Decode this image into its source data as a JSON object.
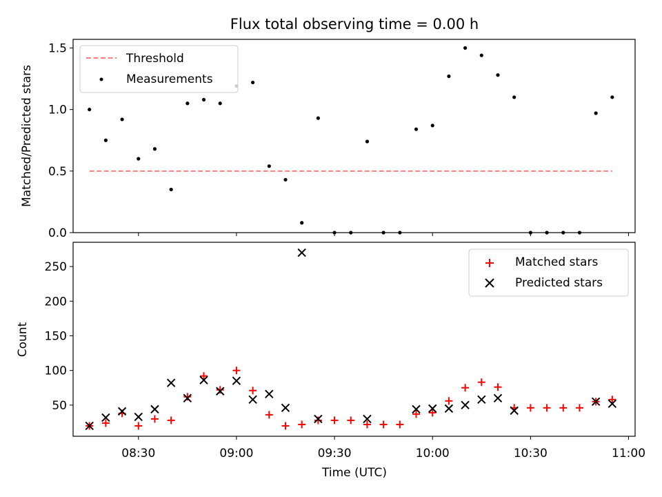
{
  "title": "Flux total observing time = 0.00 h",
  "chart_data": [
    {
      "type": "scatter",
      "ylabel": "Matched/Predicted stars",
      "ylim": [
        0,
        1.57
      ],
      "xlim": [
        "08:10",
        "11:02"
      ],
      "yticks": [
        0.0,
        0.5,
        1.0,
        1.5
      ],
      "ytick_labels": [
        "0.0",
        "0.5",
        "1.0",
        "1.5"
      ],
      "xticks": [
        "08:30",
        "09:00",
        "09:30",
        "10:00",
        "10:30",
        "11:00"
      ],
      "legend": {
        "placement": "top-left",
        "entries": [
          "Threshold",
          "Measurements"
        ]
      },
      "series": [
        {
          "name": "Threshold",
          "kind": "dashed-line",
          "color": "#ff7f7f",
          "x": [
            "08:15",
            "10:55"
          ],
          "y": [
            0.5,
            0.5
          ]
        },
        {
          "name": "Measurements",
          "kind": "dot",
          "color": "#000000",
          "x": [
            "08:15",
            "08:20",
            "08:25",
            "08:30",
            "08:35",
            "08:40",
            "08:45",
            "08:50",
            "08:55",
            "09:00",
            "09:05",
            "09:10",
            "09:15",
            "09:20",
            "09:25",
            "09:30",
            "09:35",
            "09:40",
            "09:45",
            "09:50",
            "09:55",
            "10:00",
            "10:05",
            "10:10",
            "10:15",
            "10:20",
            "10:25",
            "10:30",
            "10:35",
            "10:40",
            "10:45",
            "10:50",
            "10:55"
          ],
          "y": [
            1.0,
            0.75,
            0.92,
            0.6,
            0.68,
            0.35,
            1.05,
            1.08,
            1.05,
            1.19,
            1.22,
            0.54,
            0.43,
            0.08,
            0.93,
            0.0,
            0.0,
            0.74,
            0.0,
            0.0,
            0.84,
            0.87,
            1.27,
            1.5,
            1.44,
            1.28,
            1.1,
            0.0,
            0.0,
            0.0,
            0.0,
            0.97,
            1.1
          ]
        }
      ]
    },
    {
      "type": "scatter",
      "xlabel": "Time (UTC)",
      "ylabel": "Count",
      "ylim": [
        5,
        285
      ],
      "xlim": [
        "08:10",
        "11:02"
      ],
      "yticks": [
        50,
        100,
        150,
        200,
        250
      ],
      "ytick_labels": [
        "50",
        "100",
        "150",
        "200",
        "250"
      ],
      "xticks": [
        "08:30",
        "09:00",
        "09:30",
        "10:00",
        "10:30",
        "11:00"
      ],
      "legend": {
        "placement": "top-right",
        "entries": [
          "Matched stars",
          "Predicted stars"
        ]
      },
      "series": [
        {
          "name": "Matched stars",
          "marker": "plus",
          "color": "#ff0000",
          "x": [
            "08:15",
            "08:20",
            "08:25",
            "08:30",
            "08:35",
            "08:40",
            "08:45",
            "08:50",
            "08:55",
            "09:00",
            "09:05",
            "09:10",
            "09:15",
            "09:20",
            "09:25",
            "09:30",
            "09:35",
            "09:40",
            "09:45",
            "09:50",
            "09:55",
            "10:00",
            "10:05",
            "10:10",
            "10:15",
            "10:20",
            "10:25",
            "10:30",
            "10:35",
            "10:40",
            "10:45",
            "10:50",
            "10:55"
          ],
          "y": [
            20,
            24,
            38,
            20,
            30,
            28,
            62,
            92,
            72,
            100,
            71,
            36,
            20,
            22,
            28,
            28,
            28,
            22,
            22,
            22,
            37,
            39,
            56,
            75,
            83,
            76,
            46,
            46,
            46,
            46,
            46,
            55,
            58
          ]
        },
        {
          "name": "Predicted stars",
          "marker": "x",
          "color": "#000000",
          "x": [
            "08:15",
            "08:20",
            "08:25",
            "08:30",
            "08:35",
            "08:40",
            "08:45",
            "08:50",
            "08:55",
            "09:00",
            "09:05",
            "09:10",
            "09:15",
            "09:20",
            "09:25",
            "09:40",
            "09:55",
            "10:00",
            "10:05",
            "10:10",
            "10:15",
            "10:20",
            "10:25",
            "10:50",
            "10:55"
          ],
          "y": [
            20,
            32,
            41,
            33,
            44,
            82,
            60,
            86,
            70,
            85,
            58,
            66,
            46,
            270,
            30,
            30,
            44,
            45,
            45,
            50,
            58,
            60,
            42,
            55,
            52
          ]
        }
      ]
    }
  ]
}
